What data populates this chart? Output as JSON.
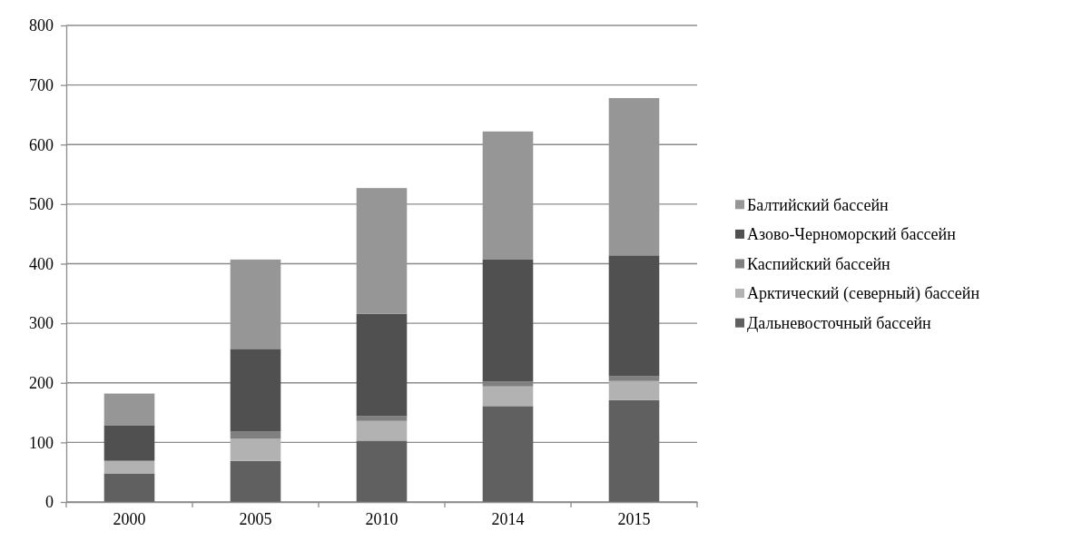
{
  "chart_data": {
    "type": "bar",
    "stacked": true,
    "categories": [
      "2000",
      "2005",
      "2010",
      "2014",
      "2015"
    ],
    "series": [
      {
        "name": "Дальневосточный бассейн",
        "color": "#606060",
        "values": [
          48,
          69,
          103,
          161,
          171
        ]
      },
      {
        "name": "Арктический (северный) бассейн",
        "color": "#b2b2b2",
        "values": [
          20,
          37,
          33,
          33,
          32
        ]
      },
      {
        "name": "Каспийский бассейн",
        "color": "#808080",
        "values": [
          2,
          12,
          8,
          8,
          8
        ]
      },
      {
        "name": "Азово-Черноморский бассейн",
        "color": "#505050",
        "values": [
          58,
          139,
          172,
          205,
          203
        ]
      },
      {
        "name": "Балтийский бассейн",
        "color": "#969696",
        "values": [
          54,
          150,
          211,
          215,
          264
        ]
      }
    ],
    "ylim": [
      0,
      800
    ],
    "yticks": [
      0,
      100,
      200,
      300,
      400,
      500,
      600,
      700,
      800
    ],
    "grid": "y",
    "legend": "right"
  }
}
